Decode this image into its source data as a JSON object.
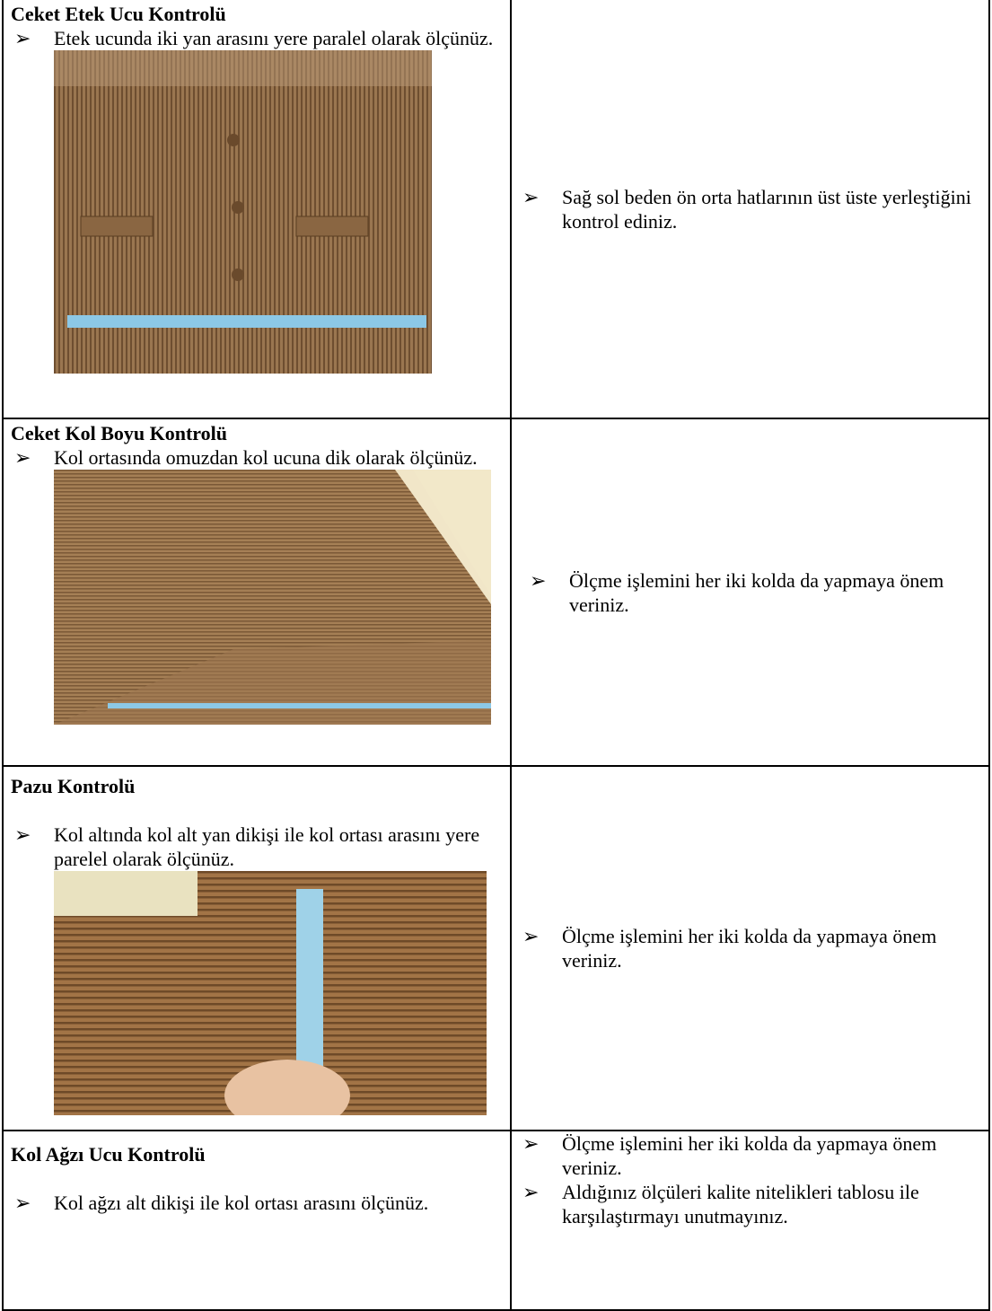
{
  "table": {
    "rows": [
      {
        "title": "Ceket Etek Ucu Kontrolü",
        "bullets": [
          "Etek ucunda iki yan arasını yere paralel olarak ölçünüz."
        ],
        "notes": [
          "Sağ sol beden ön orta hatlarının üst üste yerleştiğini kontrol ediniz."
        ]
      },
      {
        "title": "Ceket Kol Boyu Kontrolü",
        "bullets": [
          "Kol ortasında omuzdan kol ucuna dik olarak ölçünüz."
        ],
        "notes": [
          "Ölçme işlemini her iki kolda da yapmaya önem veriniz."
        ]
      },
      {
        "title": "Pazu Kontrolü",
        "bullets": [
          "Kol altında kol alt yan dikişi ile kol ortası arasını yere parelel olarak ölçünüz."
        ],
        "notes": [
          "Ölçme işlemini her iki kolda da yapmaya önem veriniz."
        ]
      },
      {
        "title": "Kol Ağzı Ucu Kontrolü",
        "bullets": [
          "Kol ağzı alt dikişi ile kol ortası arasını ölçünüz."
        ],
        "notes": [
          "Ölçme işlemini her iki kolda da yapmaya önem veriniz.",
          "Aldığınız ölçüleri kalite nitelikleri tablosu ile karşılaştırmayı unutmayınız."
        ]
      }
    ]
  }
}
